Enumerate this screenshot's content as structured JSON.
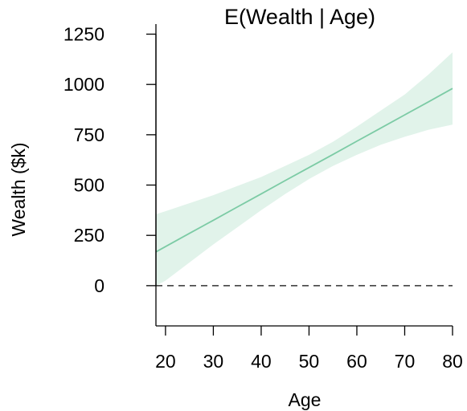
{
  "chart_data": {
    "type": "line",
    "title": "E(Wealth | Age)",
    "xlabel": "Age",
    "ylabel": "Wealth ($k)",
    "xlim": [
      18,
      80
    ],
    "ylim": [
      -200,
      1300
    ],
    "x_ticks": [
      20,
      30,
      40,
      50,
      60,
      70,
      80
    ],
    "y_ticks": [
      0,
      250,
      500,
      750,
      1000,
      1250
    ],
    "grid": false,
    "legend": "none",
    "reference_line": {
      "y": 0,
      "style": "dashed",
      "color": "#333333"
    },
    "series": [
      {
        "x": [
          18,
          20,
          25,
          30,
          35,
          40,
          45,
          50,
          55,
          60,
          65,
          70,
          75,
          80
        ],
        "y": [
          168,
          194,
          260,
          325,
          391,
          456,
          522,
          587,
          652,
          718,
          783,
          849,
          914,
          980
        ],
        "lower": [
          0,
          25,
          115,
          205,
          290,
          375,
          455,
          530,
          595,
          650,
          700,
          740,
          775,
          800
        ],
        "upper": [
          355,
          370,
          410,
          450,
          495,
          540,
          595,
          650,
          715,
          790,
          870,
          950,
          1050,
          1160
        ]
      }
    ],
    "colors": {
      "line": "#7ccba5",
      "band": "#e1f3ea",
      "axis": "#000000"
    }
  }
}
